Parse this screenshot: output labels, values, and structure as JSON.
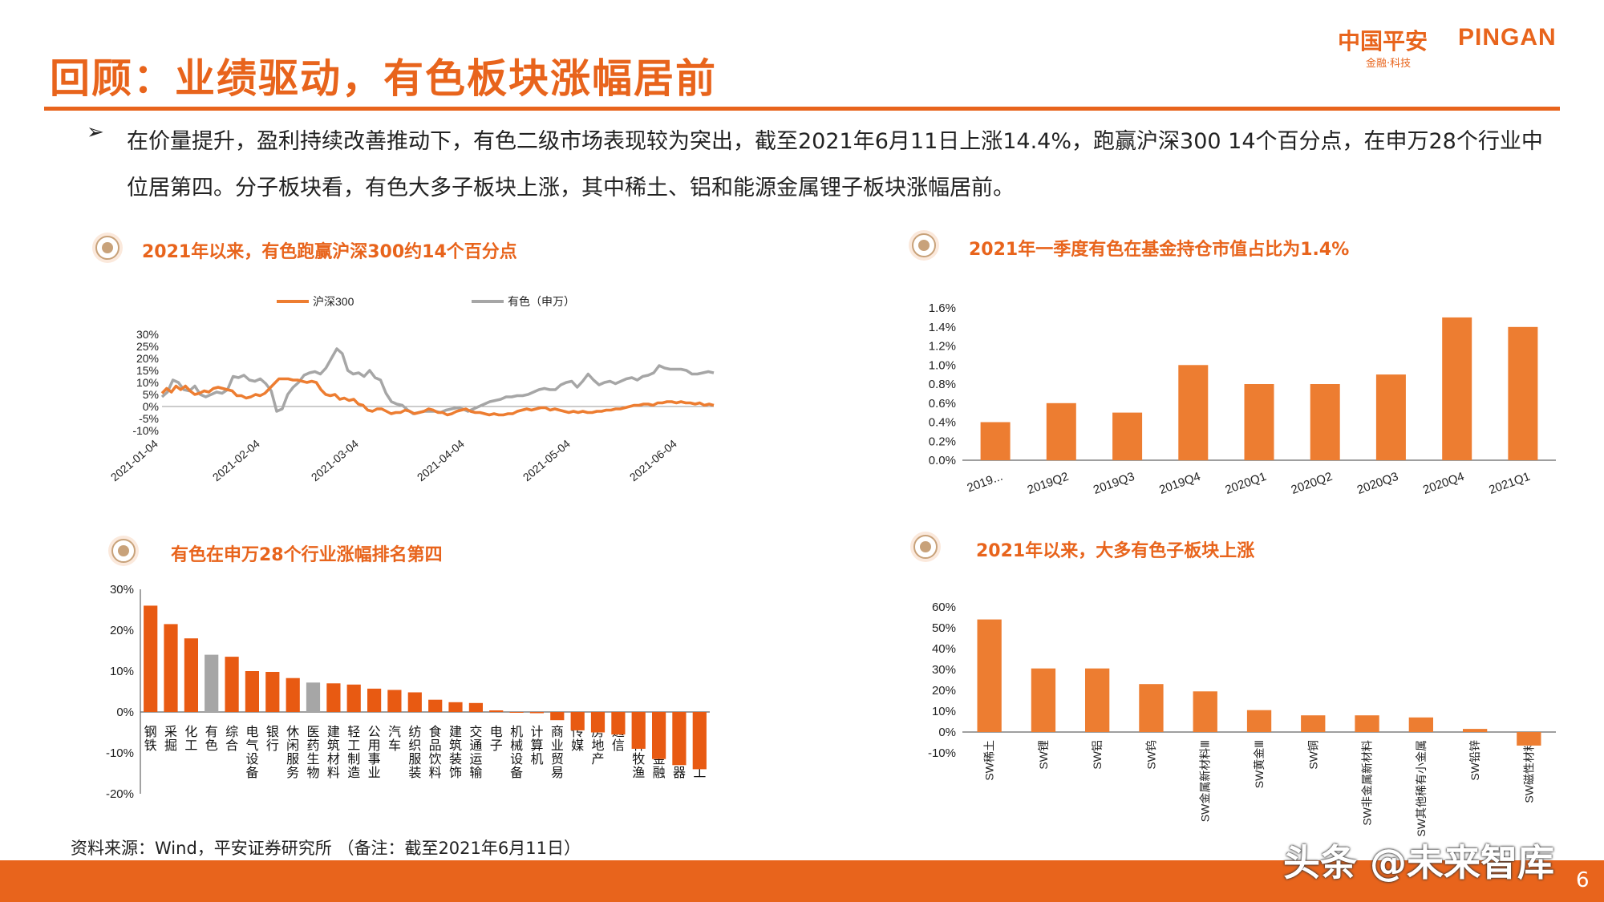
{
  "header": {
    "title": "回顾：业绩驱动，有色板块涨幅居前",
    "logo_cn": "中国平安",
    "logo_en": "PINGAN",
    "logo_sub": "金融·科技"
  },
  "bullet": {
    "marker": "➢",
    "text": "在价量提升，盈利持续改善推动下，有色二级市场表现较为突出，截至2021年6月11日上涨14.4%，跑赢沪深300 14个百分点，在申万28个行业中位居第四。分子板块看，有色大多子板块上涨，其中稀土、铝和能源金属锂子板块涨幅居前。"
  },
  "sections": {
    "s1": "2021年以来，有色跑赢沪深300约14个百分点",
    "s2": "2021年一季度有色在基金持仓市值占比为1.4%",
    "s3": "有色在申万28个行业涨幅排名第四",
    "s4": "2021年以来，大多有色子板块上涨"
  },
  "colors": {
    "orange": "#e8641c",
    "bar_orange": "#ed7d31",
    "grey": "#a6a6a6",
    "accent": "#e8641c"
  },
  "chart_data": [
    {
      "type": "line",
      "ylim": [
        -10,
        30
      ],
      "yticks": [
        "30%",
        "25%",
        "20%",
        "15%",
        "10%",
        "5%",
        "0%",
        "-5%",
        "-10%"
      ],
      "xticks": [
        "2021-01-04",
        "2021-02-04",
        "2021-03-04",
        "2021-04-04",
        "2021-05-04",
        "2021-06-04"
      ],
      "series": [
        {
          "name": "沪深300",
          "color": "#ed7d31",
          "values": [
            5.5,
            7.5,
            6,
            8.5,
            7,
            8.5,
            6.5,
            5,
            5.5,
            6.5,
            6,
            7.5,
            8,
            7.5,
            7,
            6.5,
            4.5,
            4.5,
            3.5,
            4,
            5,
            4.5,
            5.5,
            7.5,
            9.5,
            11.5,
            11.5,
            11.5,
            11,
            11,
            10.5,
            10,
            10.5,
            10,
            7,
            5,
            4.5,
            5,
            3,
            3.5,
            2.5,
            3,
            1,
            0.5,
            -1.5,
            -2,
            -1,
            -1,
            -2,
            -3,
            -2.5,
            -2.5,
            -1.5,
            -2,
            -3,
            -2.5,
            -2,
            -1,
            -1.5,
            -2.5,
            -2.5,
            -3.5,
            -3,
            -2,
            -1.5,
            -1,
            -2,
            -2.5,
            -2.5,
            -3,
            -3.5,
            -3,
            -3.5,
            -3.5,
            -3,
            -3,
            -2,
            -1.5,
            -1,
            -1.5,
            -1,
            -0.5,
            -0.5,
            -1.5,
            -1,
            -1.5,
            -2,
            -2.5,
            -2,
            -2.5,
            -2,
            -2.5,
            -2.5,
            -2,
            -2,
            -1.5,
            -1.5,
            -1,
            -1,
            -0.5,
            0,
            0.5,
            0.5,
            1,
            1,
            0.5,
            1.5,
            1.5,
            2,
            2,
            1.5,
            2,
            1.5,
            1.5,
            1,
            1.5,
            0.5,
            1,
            0.5
          ]
        },
        {
          "name": "有色（申万）",
          "color": "#a6a6a6",
          "values": [
            4,
            6,
            11,
            10,
            7,
            6.5,
            8.5,
            5,
            4,
            5,
            6,
            5.5,
            7,
            12.5,
            12,
            13,
            11,
            10.5,
            11.5,
            9.5,
            6.5,
            -2,
            -1,
            5,
            8,
            10,
            13,
            14,
            14.5,
            13.5,
            16,
            20,
            24,
            22,
            15,
            13.5,
            14,
            12.5,
            15,
            12,
            11,
            5.5,
            2,
            1,
            0.5,
            -1.5,
            -3,
            -2.5,
            -2,
            -2,
            -2,
            -2.5,
            -1.5,
            -1,
            -0.5,
            -1,
            -2,
            -1,
            0,
            1,
            2,
            2.5,
            3,
            4,
            4,
            4.5,
            4.5,
            5,
            6,
            7,
            7.5,
            7,
            7,
            9,
            10,
            10.5,
            8,
            10.5,
            13.5,
            11,
            9,
            10,
            10.5,
            9.5,
            10.5,
            11.5,
            12,
            11,
            12.5,
            13,
            14,
            17,
            16,
            15.5,
            15.5,
            15.5,
            15,
            13.5,
            13.5,
            14,
            14.5,
            14
          ]
        }
      ]
    },
    {
      "type": "bar",
      "ylim": [
        0,
        1.6
      ],
      "yticks": [
        "1.6%",
        "1.4%",
        "1.2%",
        "1.0%",
        "0.8%",
        "0.6%",
        "0.4%",
        "0.2%",
        "0.0%"
      ],
      "categories": [
        "2019...",
        "2019Q2",
        "2019Q3",
        "2019Q4",
        "2020Q1",
        "2020Q2",
        "2020Q3",
        "2020Q4",
        "2021Q1"
      ],
      "values": [
        0.4,
        0.6,
        0.5,
        1.0,
        0.8,
        0.8,
        0.9,
        1.5,
        1.4
      ]
    },
    {
      "type": "bar",
      "ylim": [
        -20,
        30
      ],
      "yticks": [
        "30%",
        "20%",
        "10%",
        "0%",
        "-10%",
        "-20%"
      ],
      "categories": [
        "钢铁",
        "采掘",
        "化工",
        "有色",
        "综合",
        "电气设备",
        "银行",
        "休闲服务",
        "医药生物",
        "建筑材料",
        "轻工制造",
        "公用事业",
        "汽车",
        "纺织服装",
        "食品饮料",
        "建筑装饰",
        "交通运输",
        "电子",
        "机械设备",
        "计算机",
        "商业贸易",
        "传媒",
        "房地产",
        "通信",
        "农林牧渔",
        "非银金融",
        "家用电器",
        "国防军工"
      ],
      "values": [
        26,
        21.5,
        18,
        14,
        13.5,
        10,
        9.8,
        8.3,
        7.2,
        7,
        6.7,
        5.7,
        5.4,
        4.8,
        3,
        2.4,
        2.2,
        0.4,
        -0.2,
        -0.3,
        -2,
        -4.5,
        -5,
        -5.5,
        -9,
        -11.5,
        -13,
        -14
      ],
      "highlight": [
        "有色",
        "医药生物"
      ]
    },
    {
      "type": "bar",
      "ylim": [
        -10,
        60
      ],
      "yticks": [
        "60%",
        "50%",
        "40%",
        "30%",
        "20%",
        "10%",
        "0%",
        "-10%"
      ],
      "categories": [
        "SW稀土",
        "SW锂",
        "SW铝",
        "SW钨",
        "SW金属新材料Ⅲ",
        "SW黄金Ⅲ",
        "SW铜",
        "SW非金属新材料",
        "SW其他稀有小金属",
        "SW铅锌",
        "SW磁性材料"
      ],
      "values": [
        54,
        30.5,
        30.5,
        23,
        19.5,
        10.5,
        8,
        8,
        7,
        1.5,
        -6.5
      ]
    }
  ],
  "footer": {
    "source": "资料来源：Wind，平安证券研究所 （备注：截至2021年6月11日）",
    "watermark": "头条 @未来智库",
    "page": "6"
  }
}
